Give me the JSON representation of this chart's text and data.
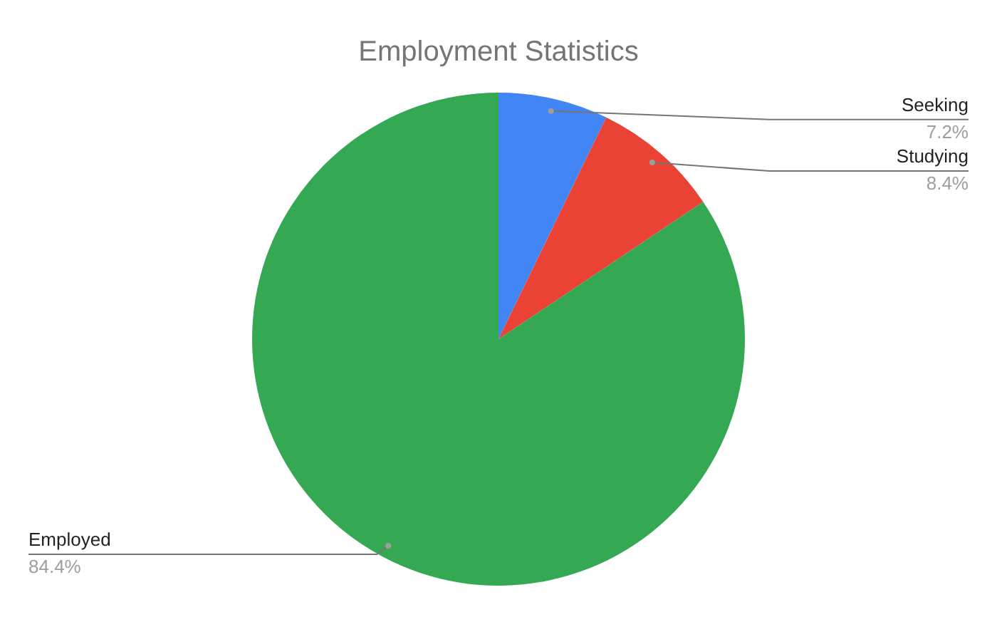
{
  "chart_data": {
    "type": "pie",
    "title": "Employment Statistics",
    "categories": [
      "Seeking",
      "Studying",
      "Employed"
    ],
    "values": [
      7.2,
      8.4,
      84.4
    ],
    "value_labels": [
      "7.2%",
      "8.4%",
      "84.4%"
    ],
    "colors": [
      "#4285f4",
      "#ea4335",
      "#34a853"
    ],
    "legend": false
  }
}
